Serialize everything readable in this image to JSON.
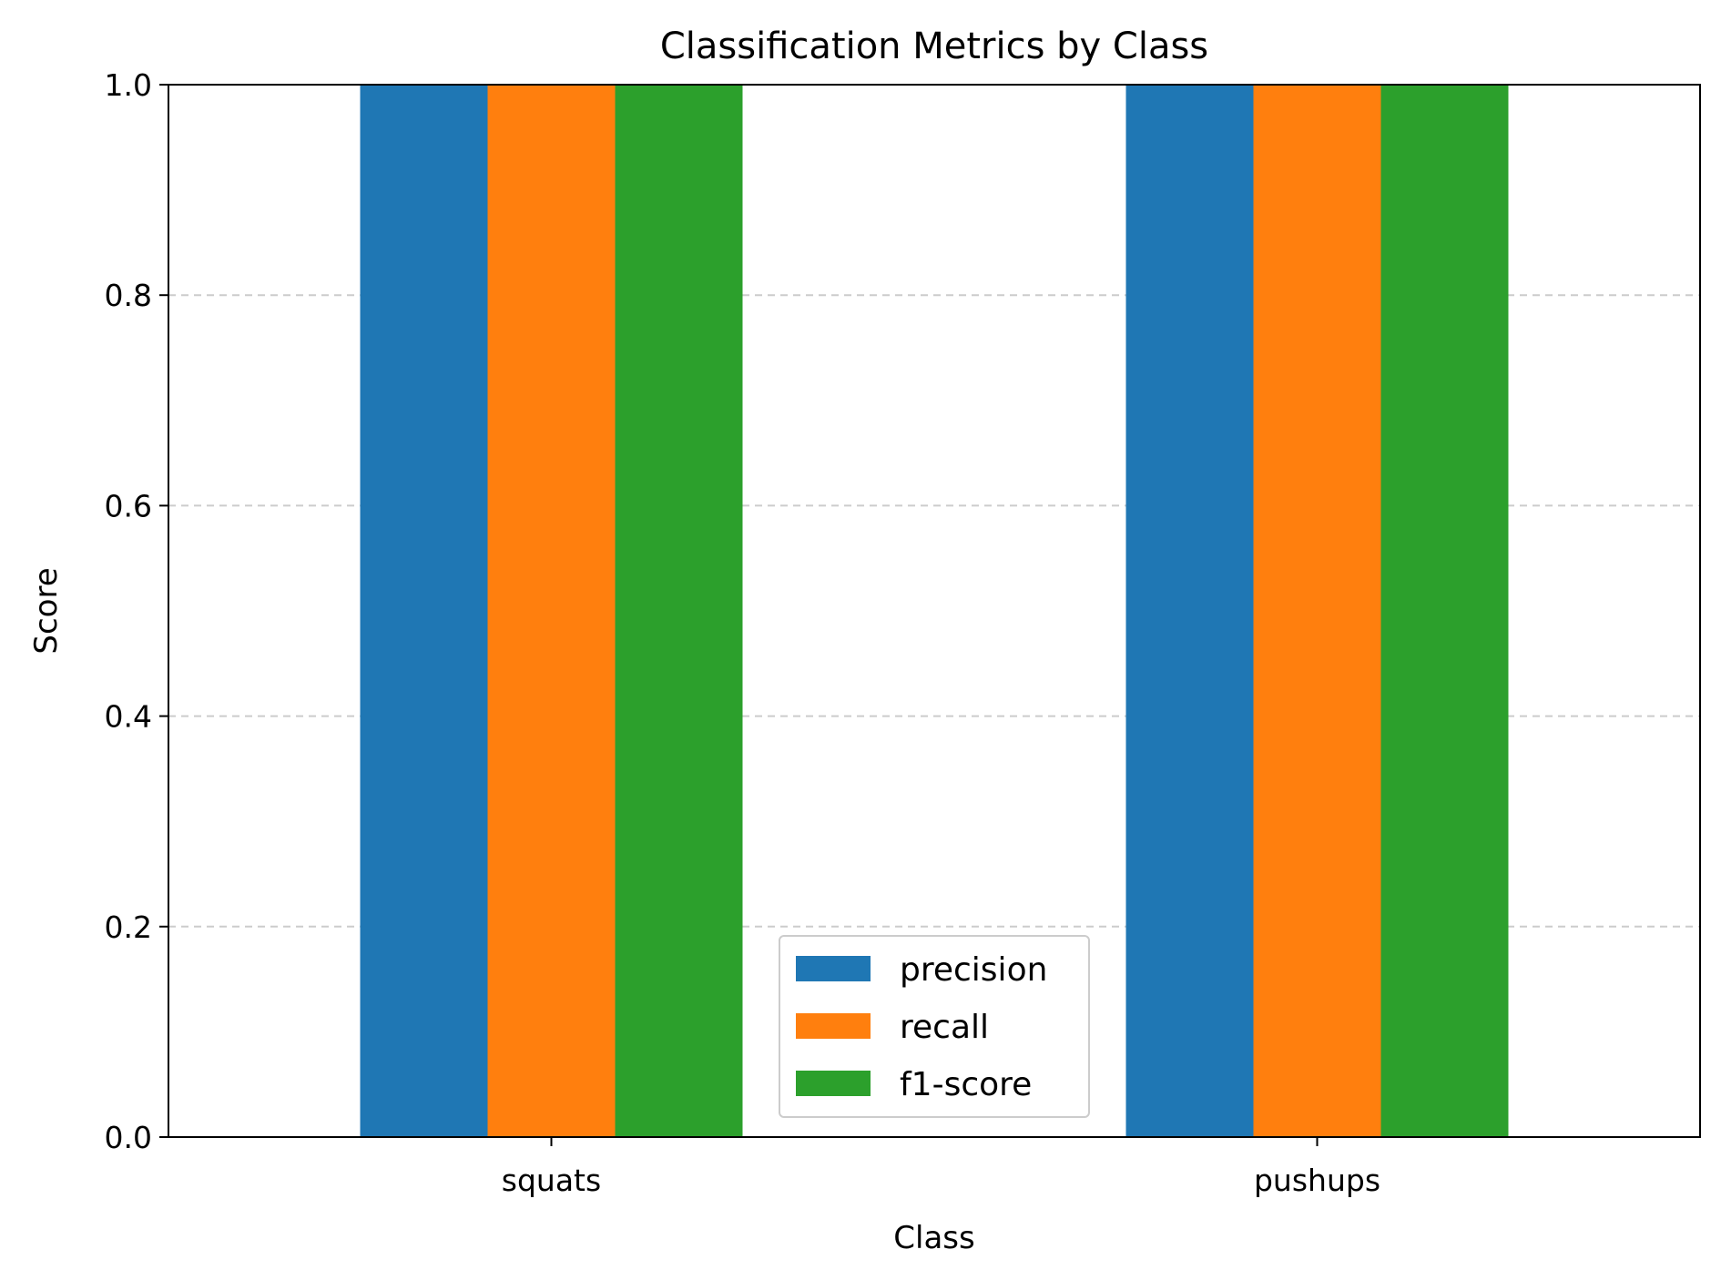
{
  "chart_data": {
    "type": "bar",
    "title": "Classification Metrics by Class",
    "xlabel": "Class",
    "ylabel": "Score",
    "categories": [
      "squats",
      "pushups"
    ],
    "series": [
      {
        "name": "precision",
        "values": [
          1.0,
          1.0
        ],
        "color": "#1f77b4"
      },
      {
        "name": "recall",
        "values": [
          1.0,
          1.0
        ],
        "color": "#ff7f0e"
      },
      {
        "name": "f1-score",
        "values": [
          1.0,
          1.0
        ],
        "color": "#2ca02c"
      }
    ],
    "ylim": [
      0,
      1.0
    ],
    "yticks": [
      "0.0",
      "0.2",
      "0.4",
      "0.6",
      "0.8",
      "1.0"
    ],
    "grid": "y-dashed",
    "legend_position": "lower center"
  }
}
